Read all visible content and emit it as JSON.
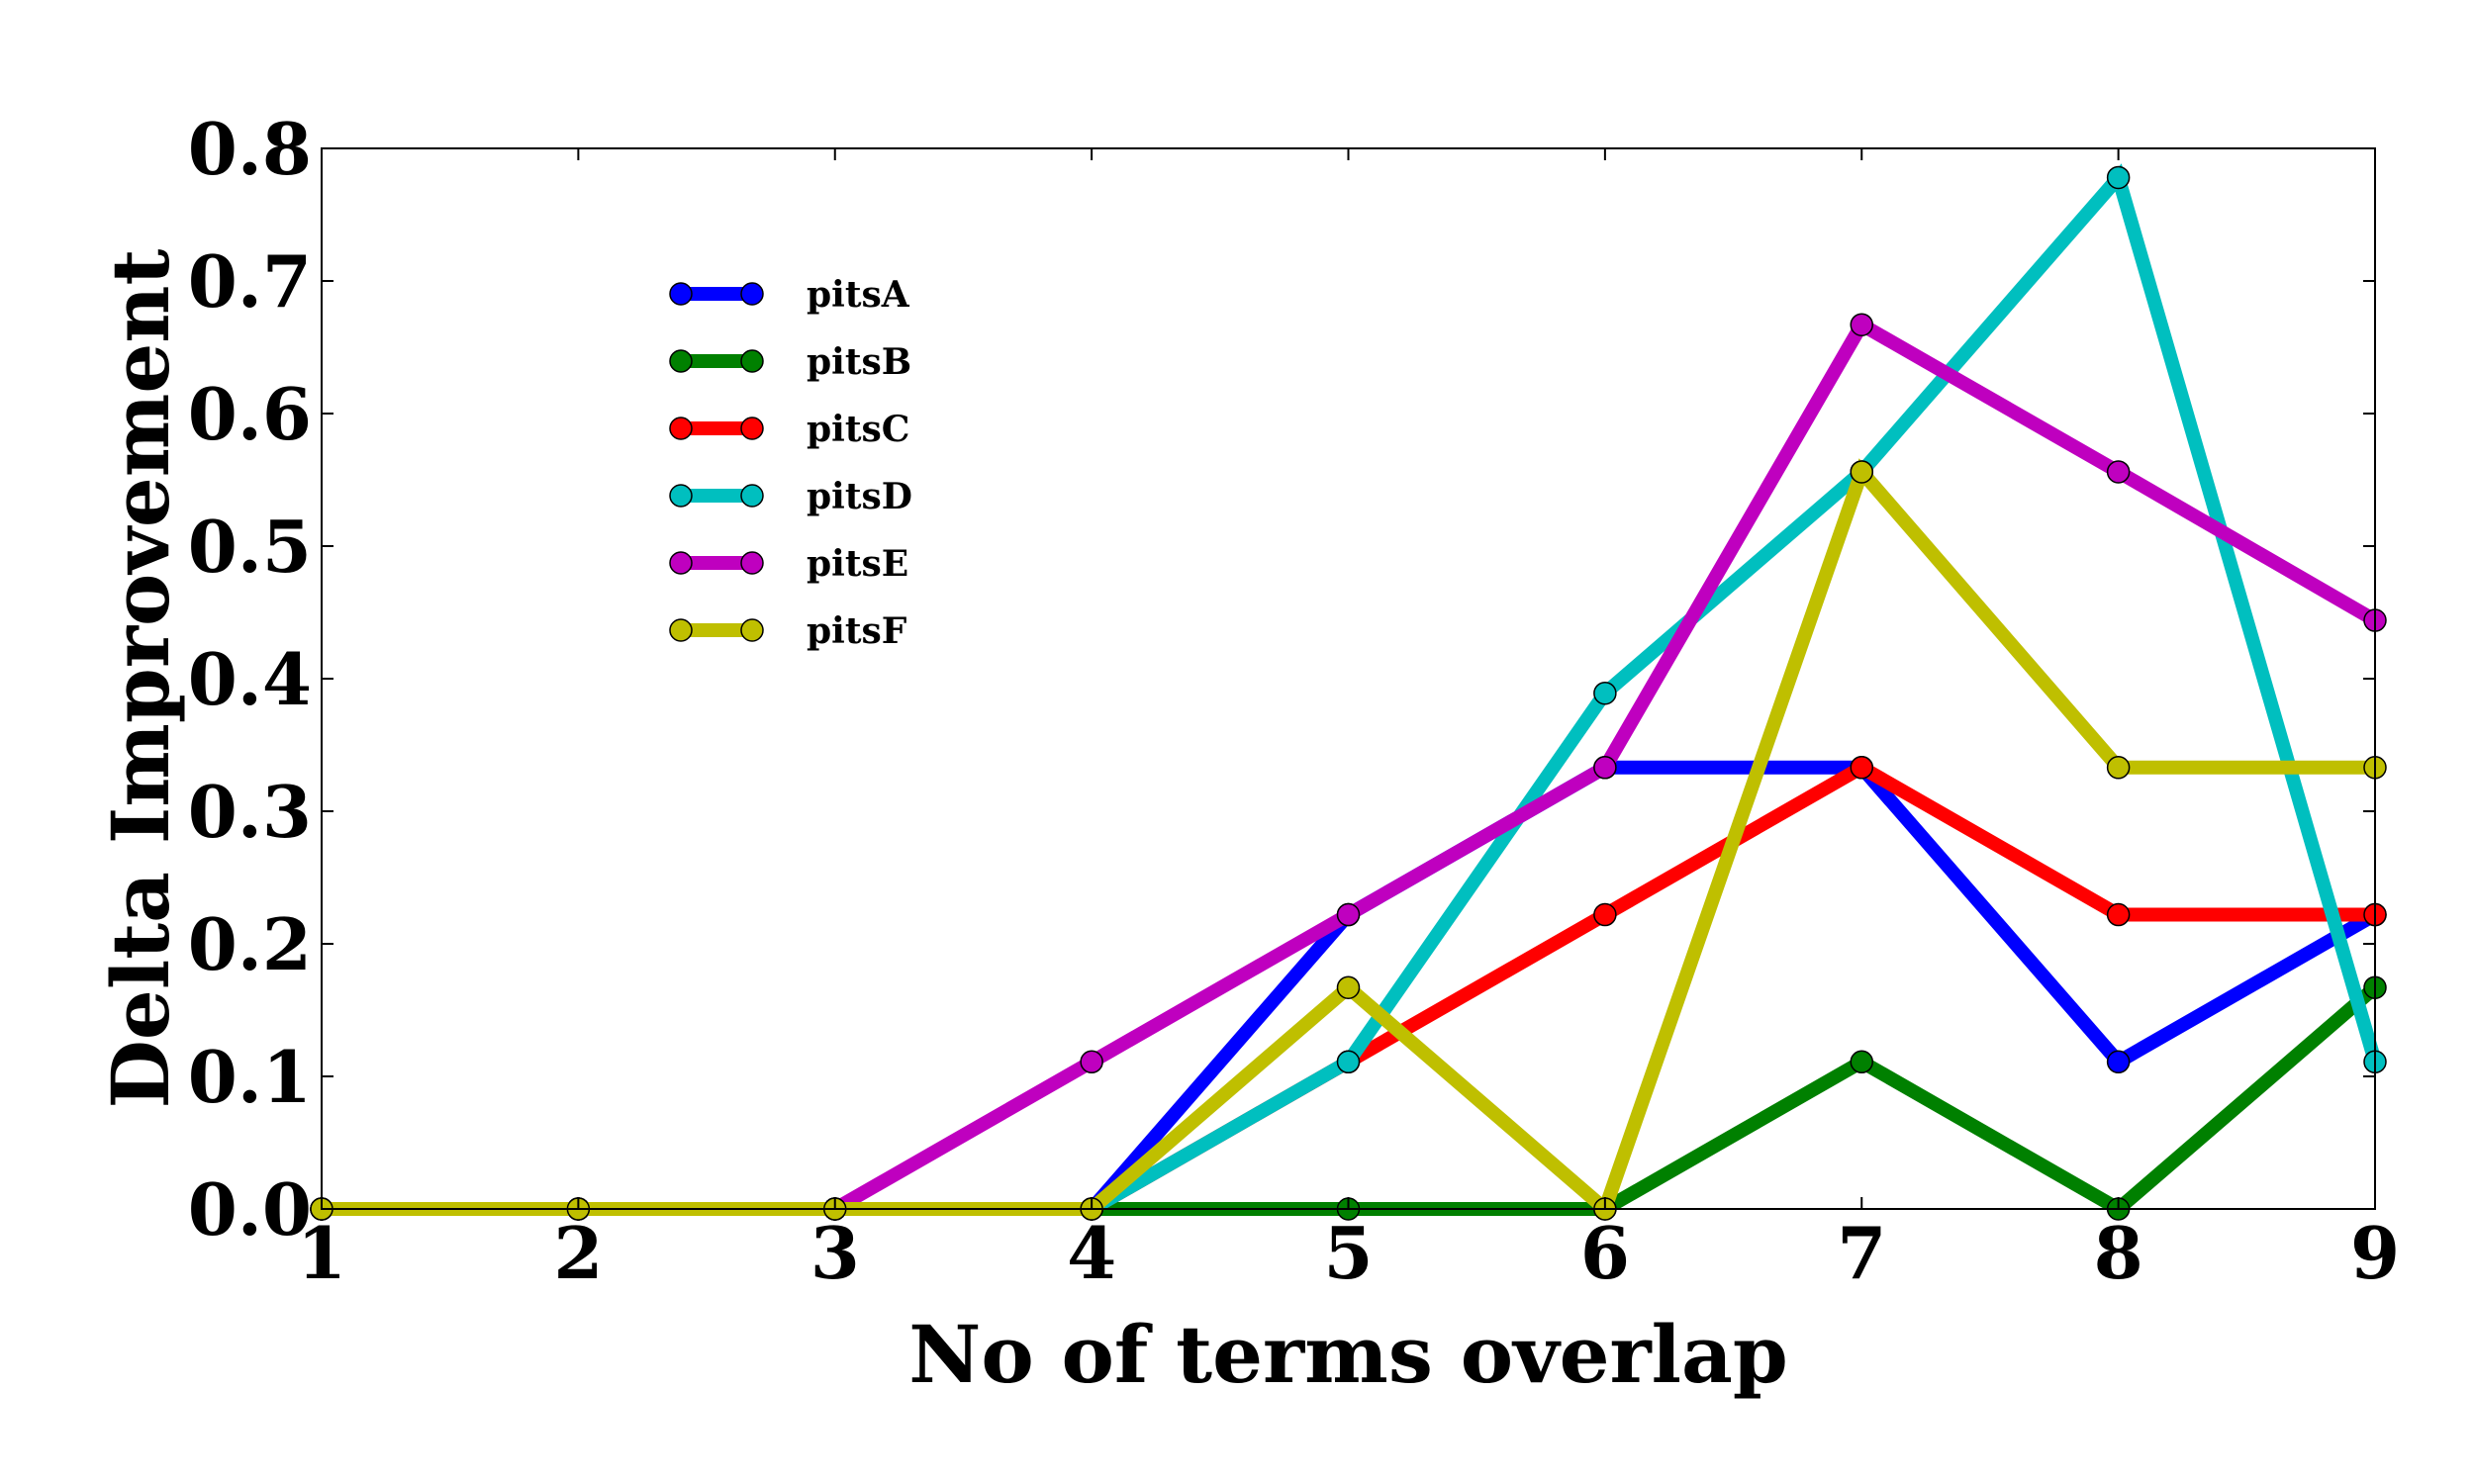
{
  "chart_data": {
    "type": "line",
    "title": "",
    "xlabel": "No of terms overlap",
    "ylabel": "Delta Improvement",
    "xlim": [
      1,
      9
    ],
    "ylim": [
      0,
      0.8
    ],
    "x": [
      1,
      2,
      3,
      4,
      5,
      6,
      7,
      8,
      9
    ],
    "xticks": [
      "1",
      "2",
      "3",
      "4",
      "5",
      "6",
      "7",
      "8",
      "9"
    ],
    "yticks": [
      "0.0",
      "0.1",
      "0.2",
      "0.3",
      "0.4",
      "0.5",
      "0.6",
      "0.7",
      "0.8"
    ],
    "grid": false,
    "legend_position": "upper-left",
    "series": [
      {
        "name": "pitsA",
        "color": "#0000ff",
        "values": [
          0,
          0,
          0,
          0,
          0.222,
          0.333,
          0.333,
          0.111,
          0.222
        ]
      },
      {
        "name": "pitsB",
        "color": "#008000",
        "values": [
          0,
          0,
          0,
          0,
          0,
          0,
          0.111,
          0,
          0.167
        ]
      },
      {
        "name": "pitsC",
        "color": "#ff0000",
        "values": [
          0,
          0,
          0,
          0,
          0.111,
          0.222,
          0.333,
          0.222,
          0.222
        ]
      },
      {
        "name": "pitsD",
        "color": "#00bfbf",
        "values": [
          0,
          0,
          0,
          0,
          0.111,
          0.389,
          0.556,
          0.778,
          0.111
        ]
      },
      {
        "name": "pitsE",
        "color": "#bf00bf",
        "values": [
          0,
          0,
          0,
          0.111,
          0.222,
          0.333,
          0.667,
          0.556,
          0.444
        ]
      },
      {
        "name": "pitsF",
        "color": "#bfbf00",
        "values": [
          0,
          0,
          0,
          0,
          0.167,
          0,
          0.556,
          0.333,
          0.333
        ]
      }
    ]
  }
}
